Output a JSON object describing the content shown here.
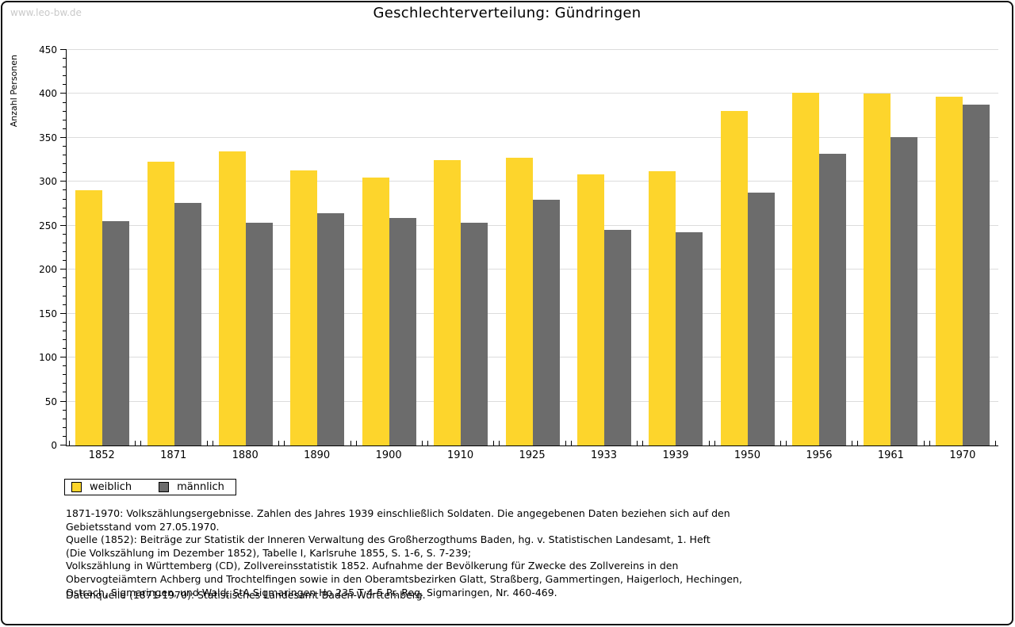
{
  "header": {
    "watermark": "www.leo-bw.de",
    "title": "Geschlechterverteilung: Gündringen"
  },
  "chart_data": {
    "type": "bar",
    "title": "Geschlechterverteilung: Gündringen",
    "ylabel": "Anzahl Personen",
    "xlabel": "",
    "ylim": [
      0,
      450
    ],
    "ytick_step": 50,
    "ytick_minor_step": 10,
    "grid": true,
    "legend_position": "bottom-left",
    "categories": [
      "1852",
      "1871",
      "1880",
      "1890",
      "1900",
      "1910",
      "1925",
      "1933",
      "1939",
      "1950",
      "1956",
      "1961",
      "1970"
    ],
    "series": [
      {
        "name": "weiblich",
        "color": "#fdd52c",
        "values": [
          290,
          323,
          335,
          313,
          305,
          325,
          327,
          308,
          312,
          381,
          401,
          400,
          397
        ]
      },
      {
        "name": "männlich",
        "color": "#6c6c6c",
        "values": [
          255,
          276,
          253,
          264,
          259,
          253,
          280,
          245,
          243,
          288,
          332,
          351,
          388
        ]
      }
    ]
  },
  "colors": {
    "weiblich": "#fdd52c",
    "maennlich": "#6c6c6c",
    "gridline": "#dcdcdc",
    "watermark": "#c9c9c9"
  },
  "footnotes": {
    "lines": [
      "1871-1970: Volkszählungsergebnisse. Zahlen des Jahres 1939 einschließlich Soldaten. Die angegebenen Daten beziehen sich auf den",
      "Gebietsstand vom 27.05.1970.",
      "Quelle (1852): Beiträge zur Statistik der Inneren Verwaltung des Großherzogthums Baden, hg. v. Statistischen Landesamt, 1. Heft",
      "(Die Volkszählung im Dezember 1852), Tabelle I, Karlsruhe 1855, S. 1-6, S. 7-239;",
      "Volkszählung in Württemberg (CD), Zollvereinsstatistik 1852. Aufnahme der Bevölkerung für Zwecke des Zollvereins in den",
      "Obervogteiämtern Achberg und Trochtelfingen sowie in den Oberamtsbezirken Glatt, Straßberg, Gammertingen, Haigerloch, Hechingen,",
      "Ostrach, Sigmaringen, und Wald; StA Sigmaringen Ho 235 T 4-5 Pr. Reg. Sigmaringen, Nr. 460-469."
    ],
    "source": "Datenquelle (1871-1970): Statistisches Landesamt Baden-Württemberg."
  }
}
